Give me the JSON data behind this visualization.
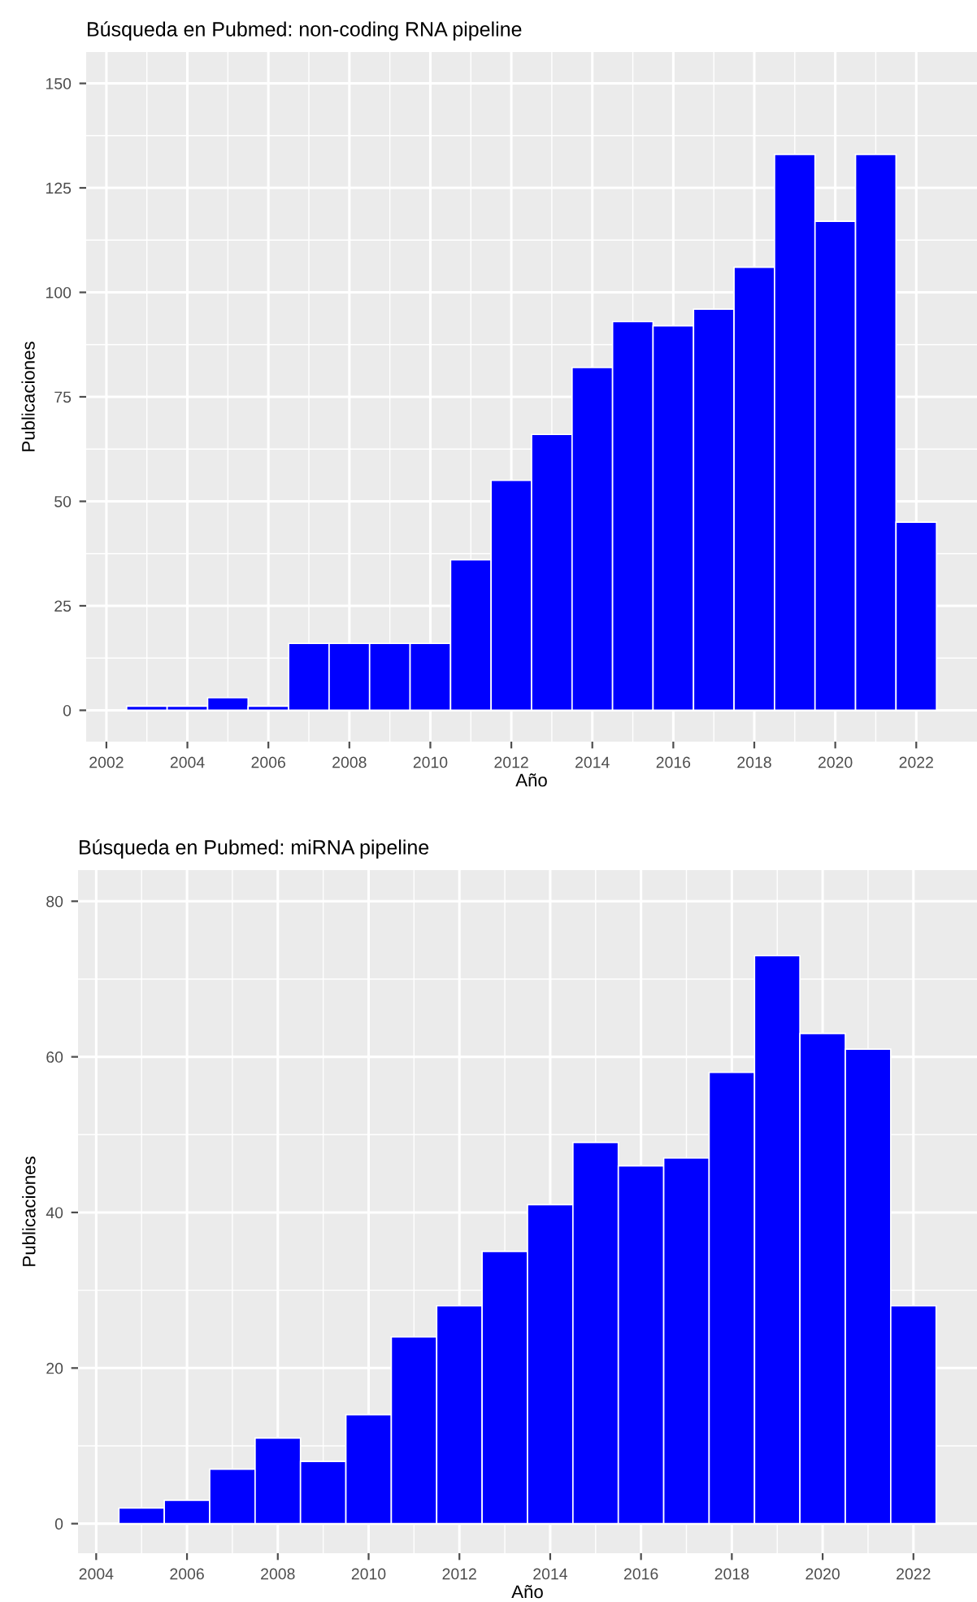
{
  "chart_data": [
    {
      "type": "histogram",
      "title": "Búsqueda en Pubmed: non-coding RNA pipeline",
      "xlabel": "Año",
      "ylabel": "Publicaciones",
      "color": "#0000ff",
      "bins": [
        2002.5,
        2003.5,
        2004.5,
        2005.5,
        2006.5,
        2007.5,
        2008.5,
        2009.5,
        2010.5,
        2011.5,
        2012.5,
        2013.5,
        2014.5,
        2015.5,
        2016.5,
        2017.5,
        2018.5,
        2019.5,
        2020.5,
        2021.5,
        2022.5
      ],
      "values": [
        1,
        1,
        3,
        1,
        16,
        16,
        16,
        16,
        36,
        55,
        66,
        82,
        93,
        92,
        96,
        106,
        133,
        117,
        133,
        45
      ],
      "xlim": [
        2001.5,
        2023.5
      ],
      "xticks": [
        2002,
        2004,
        2006,
        2008,
        2010,
        2012,
        2014,
        2016,
        2018,
        2020,
        2022
      ],
      "ylim": [
        -7.5,
        157.5
      ],
      "yticks": [
        0,
        25,
        50,
        75,
        100,
        125,
        150
      ],
      "grid": true
    },
    {
      "type": "histogram",
      "title": "Búsqueda en Pubmed: miRNA pipeline",
      "xlabel": "Año",
      "ylabel": "Publicaciones",
      "color": "#0000ff",
      "bins": [
        2004.5,
        2005.5,
        2006.5,
        2007.5,
        2008.5,
        2009.5,
        2010.5,
        2011.5,
        2012.5,
        2013.5,
        2014.5,
        2015.5,
        2016.5,
        2017.5,
        2018.5,
        2019.5,
        2020.5,
        2021.5,
        2022.5
      ],
      "values": [
        2,
        3,
        7,
        11,
        8,
        14,
        24,
        28,
        35,
        41,
        49,
        46,
        47,
        58,
        73,
        63,
        61,
        28
      ],
      "xlim": [
        2003.6,
        2023.4
      ],
      "xticks": [
        2004,
        2006,
        2008,
        2010,
        2012,
        2014,
        2016,
        2018,
        2020,
        2022
      ],
      "ylim": [
        -3.8,
        84
      ],
      "yticks": [
        0,
        20,
        40,
        60,
        80
      ],
      "grid": true
    }
  ]
}
